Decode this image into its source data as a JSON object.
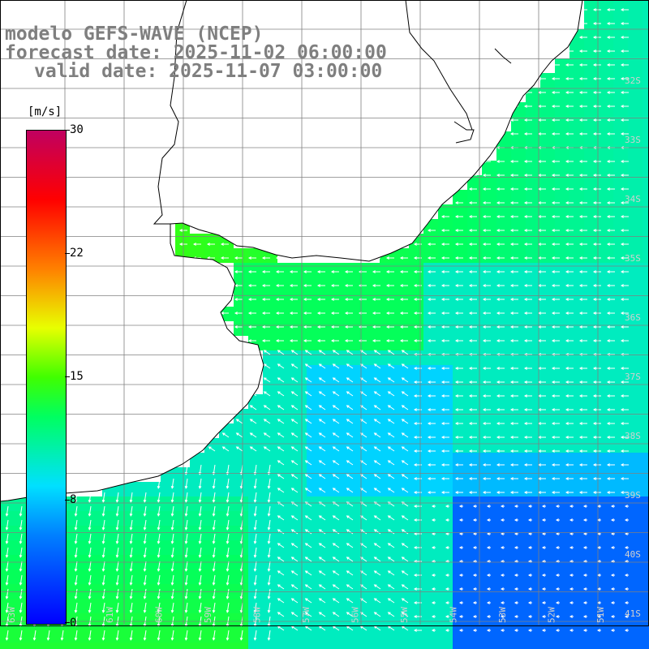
{
  "title": {
    "line1": "modelo GEFS-WAVE (NCEP)",
    "line2": "forecast date: 2025-11-02 06:00:00",
    "line3": "valid date: 2025-11-07 03:00:00"
  },
  "colorbar": {
    "unit": "[m/s]",
    "ticks": [
      "30",
      "22",
      "15",
      "8",
      "0"
    ],
    "tick_values": [
      30,
      22,
      15,
      8,
      0
    ],
    "max": 30,
    "colors": [
      "#0000ff",
      "#0080ff",
      "#00e0ff",
      "#00ff60",
      "#40ff00",
      "#e8ff00",
      "#ff8000",
      "#ff0000",
      "#c00060"
    ]
  },
  "map": {
    "lat_labels": [
      "32S",
      "33S",
      "34S",
      "35S",
      "36S",
      "37S",
      "38S",
      "39S",
      "40S",
      "41S"
    ],
    "lon_labels": [
      "63W",
      "62W",
      "61W",
      "60W",
      "59W",
      "58W",
      "57W",
      "56W",
      "55W",
      "54W",
      "53W",
      "52W",
      "51W"
    ],
    "lat_range": [
      "31S",
      "41S"
    ],
    "lon_range": [
      "63W",
      "51W"
    ],
    "land_color": "#ffffff",
    "grid_color": "#808080",
    "arrow_color": "#ffffff",
    "dominant_direction": "west / south"
  }
}
